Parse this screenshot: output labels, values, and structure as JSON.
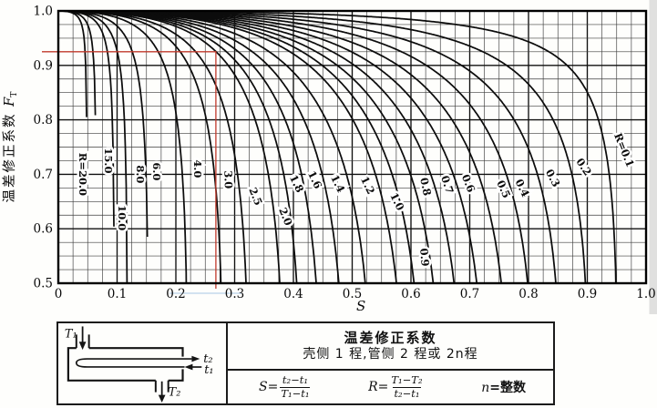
{
  "colors": {
    "ink": "#0c0c0c",
    "grid_minor": "#3c3c3c",
    "grid_major": "#101010",
    "construction_line": "#c0392b",
    "scan_artifact_blue": "#a9c7e4",
    "scan_edge_gray": "#c6c6c6",
    "paper": "#fefefc"
  },
  "chart_data": {
    "type": "line",
    "title": "",
    "xlabel": "S",
    "ylabel": "温差修正系数 F_T",
    "ylabel_cjk": "温差修正系数",
    "ylabel_sym": "F",
    "ylabel_sub": "T",
    "xlim": [
      0,
      1.0
    ],
    "ylim": [
      0.5,
      1.0
    ],
    "x_tick_step": 0.1,
    "y_tick_step": 0.1,
    "minor_grid_step": 0.025,
    "grid": true,
    "x_ticks": [
      "0",
      "0.1",
      "0.2",
      "0.3",
      "0.4",
      "0.5",
      "0.6",
      "0.7",
      "0.8",
      "0.9",
      "1.0"
    ],
    "y_ticks": [
      "1.0",
      "0.9",
      "0.8",
      "0.7",
      "0.6",
      "0.5"
    ],
    "curve_model": "F_T correction, 1 shell pass / 2n tube passes: F_T = [sqrt(R^2+1)/(R-1)]*ln[(1-S)/(1-R*S)] / ln[(2/S-1-R+sqrt(R^2+1))/(2/S-1-R-sqrt(R^2+1))]",
    "series": [
      {
        "R": 20,
        "label": "R=20.0",
        "label_s": 0.036,
        "label_f": 0.7,
        "rot": 90
      },
      {
        "R": 15,
        "label": "15.0",
        "label_s": 0.079,
        "label_f": 0.725,
        "rot": 90
      },
      {
        "R": 10,
        "label": "10.0",
        "label_s": 0.102,
        "label_f": 0.62,
        "rot": 90
      },
      {
        "R": 8,
        "label": "8.0",
        "label_s": 0.133,
        "label_f": 0.7,
        "rot": 90
      },
      {
        "R": 6,
        "label": "6.0",
        "label_s": 0.161,
        "label_f": 0.705,
        "rot": 90
      },
      {
        "R": 4,
        "label": "4.0",
        "label_s": 0.231,
        "label_f": 0.71,
        "rot": 90
      },
      {
        "R": 3,
        "label": "3.0",
        "label_s": 0.283,
        "label_f": 0.69,
        "rot": 88
      },
      {
        "R": 2.5,
        "label": "2.5",
        "label_s": 0.33,
        "label_f": 0.657,
        "rot": 68
      },
      {
        "R": 2,
        "label": "2.0",
        "label_s": 0.381,
        "label_f": 0.62,
        "rot": 68
      },
      {
        "R": 1.8,
        "label": "1.8",
        "label_s": 0.4,
        "label_f": 0.68,
        "rot": 64
      },
      {
        "R": 1.6,
        "label": "1.6",
        "label_s": 0.431,
        "label_f": 0.687,
        "rot": 64
      },
      {
        "R": 1.4,
        "label": "1.4",
        "label_s": 0.47,
        "label_f": 0.68,
        "rot": 64
      },
      {
        "R": 1.2,
        "label": "1.2",
        "label_s": 0.521,
        "label_f": 0.677,
        "rot": 64
      },
      {
        "R": 1.0,
        "label": "1.0",
        "label_s": 0.571,
        "label_f": 0.647,
        "rot": 64
      },
      {
        "R": 0.9,
        "label": "0.9",
        "label_s": 0.617,
        "label_f": 0.547,
        "rot": 85
      },
      {
        "R": 0.8,
        "label": "0.8",
        "label_s": 0.619,
        "label_f": 0.676,
        "rot": 78
      },
      {
        "R": 0.7,
        "label": "0.7",
        "label_s": 0.656,
        "label_f": 0.679,
        "rot": 72
      },
      {
        "R": 0.6,
        "label": "0.6",
        "label_s": 0.692,
        "label_f": 0.681,
        "rot": 68
      },
      {
        "R": 0.5,
        "label": "0.5",
        "label_s": 0.752,
        "label_f": 0.67,
        "rot": 66
      },
      {
        "R": 0.4,
        "label": "0.4",
        "label_s": 0.784,
        "label_f": 0.672,
        "rot": 64
      },
      {
        "R": 0.3,
        "label": "0.3",
        "label_s": 0.836,
        "label_f": 0.69,
        "rot": 62
      },
      {
        "R": 0.2,
        "label": "0.2",
        "label_s": 0.889,
        "label_f": 0.71,
        "rot": 56
      },
      {
        "R": 0.1,
        "label": "R=0.1",
        "label_s": 0.957,
        "label_f": 0.742,
        "rot": 68
      }
    ],
    "construction_line": {
      "color": "#c0392b",
      "f_value": 0.925,
      "s_value": 0.268,
      "points_sf": [
        [
          0,
          0.925
        ],
        [
          0.268,
          0.925
        ],
        [
          0.268,
          0.5
        ]
      ]
    }
  },
  "legend_box": {
    "title_line1": "温差修正系数",
    "title_line2": "壳侧 1 程,管侧 2 程或 2n程",
    "formula_s": {
      "lhs": "S=",
      "num": "t₂−t₁",
      "den": "T₁−t₁"
    },
    "formula_r": {
      "lhs": "R=",
      "num": "T₁−T₂",
      "den": "t₂−t₁"
    },
    "formula_n": {
      "sym": "n",
      "rest": "=整数"
    },
    "diagram": {
      "T1": "T₁",
      "T2": "T₂",
      "t2": "t₂",
      "t1": "t₁"
    }
  }
}
